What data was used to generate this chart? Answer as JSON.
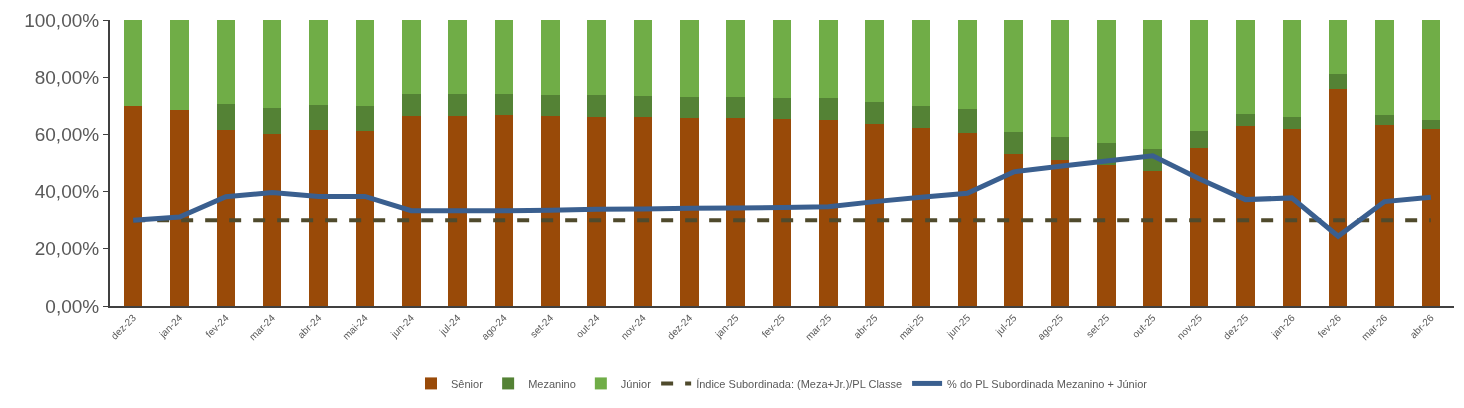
{
  "chart_data": {
    "type": "bar",
    "stacked": true,
    "categories": [
      "dez-23",
      "jan-24",
      "fev-24",
      "mar-24",
      "abr-24",
      "mai-24",
      "jun-24",
      "jul-24",
      "ago-24",
      "set-24",
      "out-24",
      "nov-24",
      "dez-24",
      "jan-25",
      "fev-25",
      "mar-25",
      "abr-25",
      "mai-25",
      "jun-25",
      "jul-25",
      "ago-25",
      "set-25",
      "out-25",
      "nov-25",
      "dez-25",
      "jan-26",
      "fev-26",
      "mar-26",
      "abr-26"
    ],
    "series": [
      {
        "name": "Sênior",
        "color": "#994a08",
        "values": [
          70.0,
          68.6,
          61.5,
          60.2,
          61.5,
          61.2,
          66.6,
          66.6,
          66.8,
          66.4,
          66.2,
          66.0,
          65.8,
          65.6,
          65.4,
          65.2,
          63.6,
          62.2,
          60.6,
          53.3,
          51.1,
          49.3,
          47.3,
          55.3,
          62.9,
          62.0,
          75.9,
          63.3,
          61.8
        ]
      },
      {
        "name": "Mezanino",
        "color": "#548235",
        "values": [
          0,
          0,
          9.1,
          9.0,
          8.7,
          8.7,
          7.6,
          7.6,
          7.3,
          7.5,
          7.5,
          7.6,
          7.4,
          7.4,
          7.5,
          7.5,
          7.7,
          7.7,
          8.2,
          7.7,
          7.9,
          7.7,
          7.7,
          6.0,
          4.4,
          4.0,
          5.2,
          3.4,
          3.4
        ]
      },
      {
        "name": "Júnior",
        "color": "#70ad47",
        "values": [
          30.0,
          31.4,
          29.4,
          30.8,
          29.8,
          30.1,
          25.8,
          25.8,
          25.9,
          26.1,
          26.3,
          26.4,
          26.8,
          27.0,
          27.1,
          27.3,
          28.7,
          30.1,
          31.2,
          39.0,
          41.0,
          43.0,
          45.0,
          38.7,
          32.7,
          34.0,
          18.9,
          33.3,
          34.8
        ]
      },
      {
        "name": "Índice Subordinada: (Meza+Jr.)/PL Classe",
        "type": "line",
        "line_style": "dashed",
        "color": "#4f4a2c",
        "values": [
          30,
          30,
          30,
          30,
          30,
          30,
          30,
          30,
          30,
          30,
          30,
          30,
          30,
          30,
          30,
          30,
          30,
          30,
          30,
          30,
          30,
          30,
          30,
          30,
          30,
          30,
          30,
          30,
          30
        ]
      },
      {
        "name": "% do PL Subordinada Mezanino + Júnior",
        "type": "line",
        "line_style": "solid",
        "color": "#3a5f8f",
        "values": [
          30.0,
          31.1,
          38.2,
          39.7,
          38.3,
          38.3,
          33.3,
          33.3,
          33.3,
          33.5,
          33.8,
          33.9,
          34.2,
          34.3,
          34.4,
          34.7,
          36.5,
          38.0,
          39.4,
          46.9,
          48.9,
          50.7,
          52.5,
          44.5,
          37.2,
          37.8,
          24.4,
          36.5,
          38.0
        ]
      }
    ],
    "ylim": [
      0,
      100
    ],
    "yticks": [
      {
        "value": 0,
        "label": "0,00%"
      },
      {
        "value": 20,
        "label": "20,00%"
      },
      {
        "value": 40,
        "label": "40,00%"
      },
      {
        "value": 60,
        "label": "60,00%"
      },
      {
        "value": 80,
        "label": "80,00%"
      },
      {
        "value": 100,
        "label": "100,00%"
      }
    ],
    "legend": "bottom",
    "marker": "none"
  }
}
